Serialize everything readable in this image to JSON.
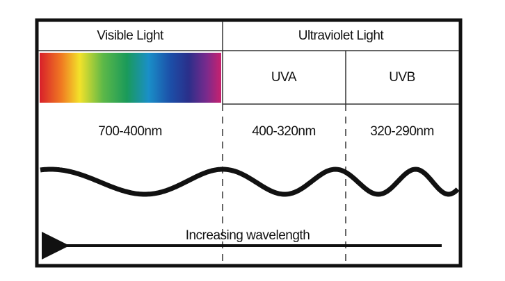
{
  "header": {
    "visible": "Visible Light",
    "ultraviolet": "Ultraviolet Light"
  },
  "bands": [
    "UVA",
    "UVB"
  ],
  "ranges": [
    "700-400nm",
    "400-320nm",
    "320-290nm"
  ],
  "arrow_label": "Increasing wavelength"
}
